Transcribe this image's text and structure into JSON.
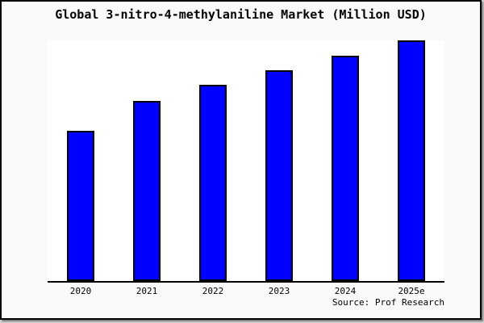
{
  "window": {
    "outer_background": "#d6d6d6",
    "page_background": "#fafafa",
    "page_border_color": "#000000"
  },
  "header": {
    "title": "Global 3-nitro-4-methylaniline Market (Million USD)"
  },
  "chart_data": {
    "type": "bar",
    "title": "Global 3-nitro-4-methylaniline Market (Million USD)",
    "categories": [
      "2020",
      "2021",
      "2022",
      "2023",
      "2024",
      "2025e"
    ],
    "values": [
      62.4,
      74.8,
      81.5,
      87.6,
      93.6,
      100
    ],
    "value_scale": "percent of tallest bar (2025e); no y-axis scale shown in chart",
    "xlabel": "",
    "ylabel": "",
    "ylim": [
      0,
      100
    ],
    "grid": false,
    "legend": "none",
    "bar_color": "#0000ff",
    "bar_border_color": "#000000",
    "axis_line_color": "#000000",
    "plot_background": "#ffffff"
  },
  "footer": {
    "source": "Source: Prof Research"
  }
}
